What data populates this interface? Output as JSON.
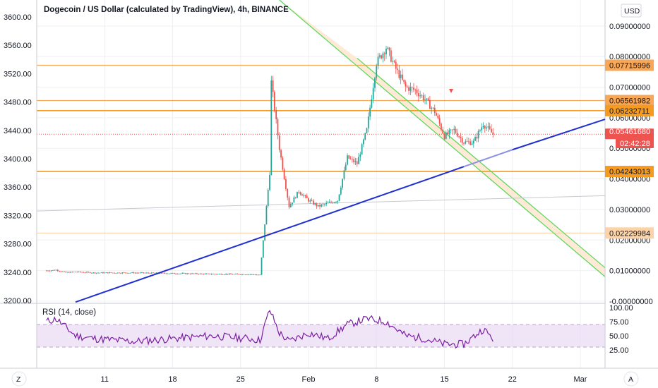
{
  "title": "Dogecoin / US Dollar (calculated by TradingView), 4h, BINANCE",
  "currency_button": "USD",
  "left_axis_ticks": [
    "3600.00",
    "3560.00",
    "3520.00",
    "3480.00",
    "3440.00",
    "3400.00",
    "3360.00",
    "3320.00",
    "3280.00",
    "3240.00",
    "3200.00"
  ],
  "right_axis_ticks": [
    "0.09000000",
    "0.08000000",
    "0.07000000",
    "0.06000000",
    "0.05000000",
    "0.04000000",
    "0.03000000",
    "0.02000000",
    "0.01000000",
    "-0.00000000"
  ],
  "x_ticks": [
    "11",
    "18",
    "25",
    "Feb",
    "8",
    "15",
    "22",
    "Mar"
  ],
  "price_levels": [
    {
      "value": "0.07715996",
      "color": "#f7a756"
    },
    {
      "value": "0.06561982",
      "color": "#f7a756"
    },
    {
      "value": "0.06232711",
      "color": "#f59b22"
    },
    {
      "value": "0.04243013",
      "color": "#f59b22"
    },
    {
      "value": "0.02229984",
      "color": "#fcd3a8"
    }
  ],
  "current_price": {
    "value": "0.05461680",
    "countdown": "02:42:28",
    "color": "#ef5350"
  },
  "rsi": {
    "label": "RSI (14, close)",
    "ticks": [
      "100.00",
      "75.00",
      "50.00",
      "25.00"
    ],
    "color": "#7b1fa2"
  },
  "bottom_buttons": {
    "left": "Z",
    "right": "A"
  },
  "colors": {
    "up": "#26a69a",
    "down": "#ef5350",
    "trendline": "#1f2fd1",
    "channel": "#5cd85c",
    "channel_fill": "#fde0c4"
  },
  "chart_data": {
    "type": "candlestick",
    "title": "Dogecoin / US Dollar (calculated by TradingView), 4h, BINANCE",
    "y_range": [
      -0.0007,
      0.0985
    ],
    "y_right_ticks": [
      0.09,
      0.08,
      0.07,
      0.06,
      0.05,
      0.04,
      0.03,
      0.02,
      0.01,
      0.0
    ],
    "x_labels": [
      "11",
      "18",
      "25",
      "Feb",
      "8",
      "15",
      "22",
      "Mar"
    ],
    "close_path": [
      [
        "2021-01-05",
        0.01
      ],
      [
        "2021-01-06",
        0.0102
      ],
      [
        "2021-01-07",
        0.0094
      ],
      [
        "2021-01-08",
        0.0096
      ],
      [
        "2021-01-10",
        0.0093
      ],
      [
        "2021-01-14",
        0.0093
      ],
      [
        "2021-01-18",
        0.0091
      ],
      [
        "2021-01-22",
        0.0089
      ],
      [
        "2021-01-26",
        0.0088
      ],
      [
        "2021-01-27",
        0.0086
      ],
      [
        "2021-01-28",
        0.042
      ],
      [
        "2021-01-28",
        0.076
      ],
      [
        "2021-01-29",
        0.05
      ],
      [
        "2021-01-30",
        0.031
      ],
      [
        "2021-01-31",
        0.036
      ],
      [
        "2021-02-01",
        0.033
      ],
      [
        "2021-02-02",
        0.031
      ],
      [
        "2021-02-04",
        0.033
      ],
      [
        "2021-02-05",
        0.047
      ],
      [
        "2021-02-06",
        0.045
      ],
      [
        "2021-02-07",
        0.056
      ],
      [
        "2021-02-08",
        0.078
      ],
      [
        "2021-02-09",
        0.083
      ],
      [
        "2021-02-10",
        0.076
      ],
      [
        "2021-02-11",
        0.07
      ],
      [
        "2021-02-12",
        0.069
      ],
      [
        "2021-02-13",
        0.066
      ],
      [
        "2021-02-14",
        0.062
      ],
      [
        "2021-02-15",
        0.054
      ],
      [
        "2021-02-16",
        0.056
      ],
      [
        "2021-02-17",
        0.052
      ],
      [
        "2021-02-18",
        0.052
      ],
      [
        "2021-02-19",
        0.058
      ],
      [
        "2021-02-20",
        0.0546
      ]
    ],
    "price_levels": [
      0.07715996,
      0.06561982,
      0.06232711,
      0.04243013,
      0.02229984
    ],
    "current_price": 0.0546168,
    "rsi": {
      "name": "RSI (14, close)",
      "range": [
        0,
        100
      ],
      "ticks": [
        100,
        75,
        50,
        25
      ],
      "band": [
        30,
        70
      ],
      "path": [
        [
          "2021-01-05",
          75
        ],
        [
          "2021-01-06",
          80
        ],
        [
          "2021-01-08",
          50
        ],
        [
          "2021-01-10",
          45
        ],
        [
          "2021-01-14",
          40
        ],
        [
          "2021-01-18",
          45
        ],
        [
          "2021-01-22",
          50
        ],
        [
          "2021-01-26",
          45
        ],
        [
          "2021-01-27",
          42
        ],
        [
          "2021-01-28",
          96
        ],
        [
          "2021-01-29",
          55
        ],
        [
          "2021-01-30",
          40
        ],
        [
          "2021-02-01",
          55
        ],
        [
          "2021-02-03",
          45
        ],
        [
          "2021-02-05",
          70
        ],
        [
          "2021-02-07",
          80
        ],
        [
          "2021-02-09",
          75
        ],
        [
          "2021-02-11",
          50
        ],
        [
          "2021-02-13",
          45
        ],
        [
          "2021-02-15",
          35
        ],
        [
          "2021-02-17",
          35
        ],
        [
          "2021-02-19",
          62
        ],
        [
          "2021-02-20",
          45
        ]
      ]
    }
  }
}
